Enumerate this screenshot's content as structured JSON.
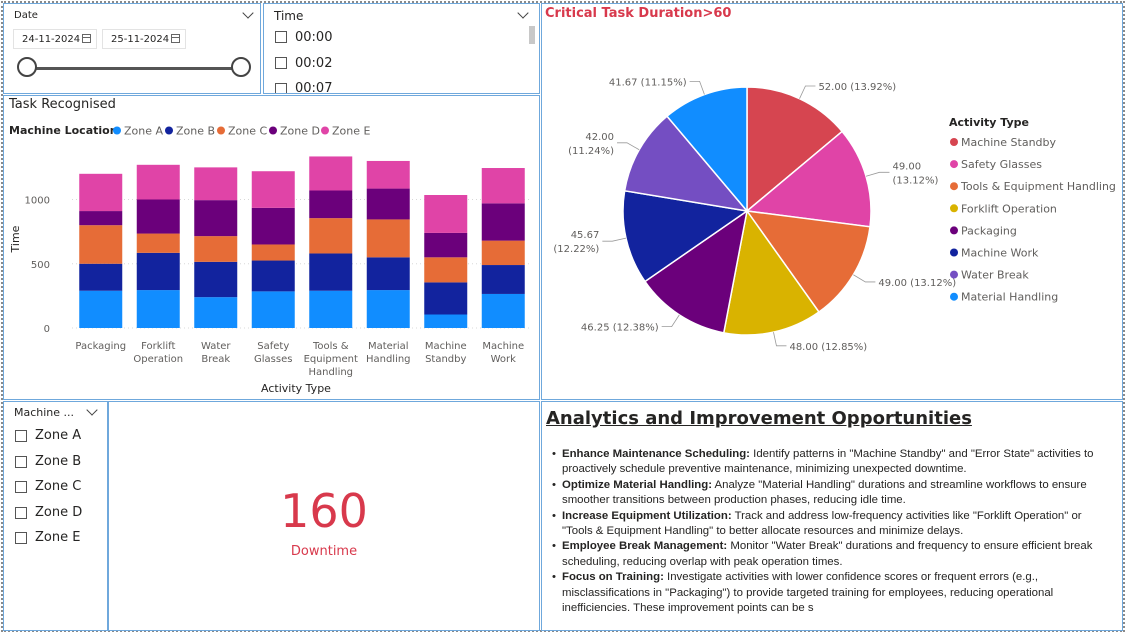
{
  "date_slicer": {
    "label": "Date",
    "start": "24-11-2024",
    "end": "25-11-2024",
    "range_start_fraction": 0,
    "range_end_fraction": 1
  },
  "time_slicer": {
    "label": "Time",
    "options": [
      "00:00",
      "00:02",
      "00:07"
    ]
  },
  "bar_panel": {
    "title": "Task Recognised",
    "legend_title": "Machine Location",
    "x_title": "Activity Type",
    "y_title": "Time"
  },
  "chart_data": [
    {
      "type": "bar",
      "stacked": true,
      "categories": [
        [
          "Packaging"
        ],
        [
          "Forklift",
          "Operation"
        ],
        [
          "Water",
          "Break"
        ],
        [
          "Safety",
          "Glasses"
        ],
        [
          "Tools &",
          "Equipment",
          "Handling"
        ],
        [
          "Material",
          "Handling"
        ],
        [
          "Machine",
          "Standby"
        ],
        [
          "Machine",
          "Work"
        ]
      ],
      "yticks": [
        0,
        500,
        1000
      ],
      "ylim": [
        0,
        1400
      ],
      "series": [
        {
          "name": "Zone A",
          "color": "#118dff",
          "values": [
            290,
            295,
            240,
            285,
            290,
            295,
            105,
            265
          ]
        },
        {
          "name": "Zone B",
          "color": "#12239e",
          "values": [
            210,
            290,
            275,
            240,
            290,
            255,
            250,
            225
          ]
        },
        {
          "name": "Zone C",
          "color": "#e66c37",
          "values": [
            300,
            150,
            200,
            125,
            275,
            295,
            195,
            190
          ]
        },
        {
          "name": "Zone D",
          "color": "#6b007b",
          "values": [
            110,
            265,
            280,
            285,
            215,
            240,
            190,
            290
          ]
        },
        {
          "name": "Zone E",
          "color": "#e044a7",
          "values": [
            290,
            270,
            255,
            285,
            265,
            215,
            295,
            275
          ]
        }
      ]
    },
    {
      "type": "pie",
      "title": "Critical Task Duration>60",
      "legend_title": "Activity Type",
      "slices": [
        {
          "name": "Machine Standby",
          "value": 52.0,
          "label": "52.00 (13.92%)",
          "color": "#d64550"
        },
        {
          "name": "Safety Glasses",
          "value": 49.0,
          "label": "49.00\n(13.12%)",
          "color": "#e044a7"
        },
        {
          "name": "Tools & Equipment Handling",
          "value": 49.0,
          "label": "49.00 (13.12%)",
          "color": "#e66c37"
        },
        {
          "name": "Forklift Operation",
          "value": 48.0,
          "label": "48.00 (12.85%)",
          "color": "#d9b300"
        },
        {
          "name": "Packaging",
          "value": 46.25,
          "label": "46.25 (12.38%)",
          "color": "#6b007b"
        },
        {
          "name": "Machine Work",
          "value": 45.67,
          "label": "45.67\n(12.22%)",
          "color": "#12239e"
        },
        {
          "name": "Water Break",
          "value": 42.0,
          "label": "42.00\n(11.24%)",
          "color": "#744ec2"
        },
        {
          "name": "Material Handling",
          "value": 41.67,
          "label": "41.67 (11.15%)",
          "color": "#118dff"
        }
      ]
    }
  ],
  "machine_slicer": {
    "label": "Machine ...",
    "options": [
      "Zone A",
      "Zone B",
      "Zone C",
      "Zone D",
      "Zone E"
    ]
  },
  "kpi": {
    "value": "160",
    "label": "Downtime",
    "color": "#d8394c"
  },
  "analytics": {
    "title": "Analytics and Improvement Opportunities ",
    "items": [
      {
        "head": " Enhance Maintenance Scheduling:",
        "body": " Identify patterns in \"Machine Standby\" and \"Error State\" activities to proactively schedule preventive maintenance, minimizing unexpected downtime."
      },
      {
        "head": "Optimize Material Handling:",
        "body": " Analyze \"Material Handling\" durations and streamline workflows to ensure smoother transitions between production phases, reducing idle time."
      },
      {
        "head": "Increase Equipment Utilization:",
        "body": " Track and address low-frequency activities like \"Forklift Operation\" or \"Tools & Equipment Handling\" to better allocate resources and minimize delays."
      },
      {
        "head": "Employee Break Management:",
        "body": " Monitor \"Water Break\" durations and frequency to ensure efficient break scheduling, reducing overlap with peak operation times."
      },
      {
        "head": "Focus on Training:",
        "body": " Investigate activities with lower confidence scores or frequent errors (e.g., misclassifications in \"Packaging\") to provide targeted training for employees, reducing operational inefficiencies. These improvement points can be s"
      }
    ]
  }
}
